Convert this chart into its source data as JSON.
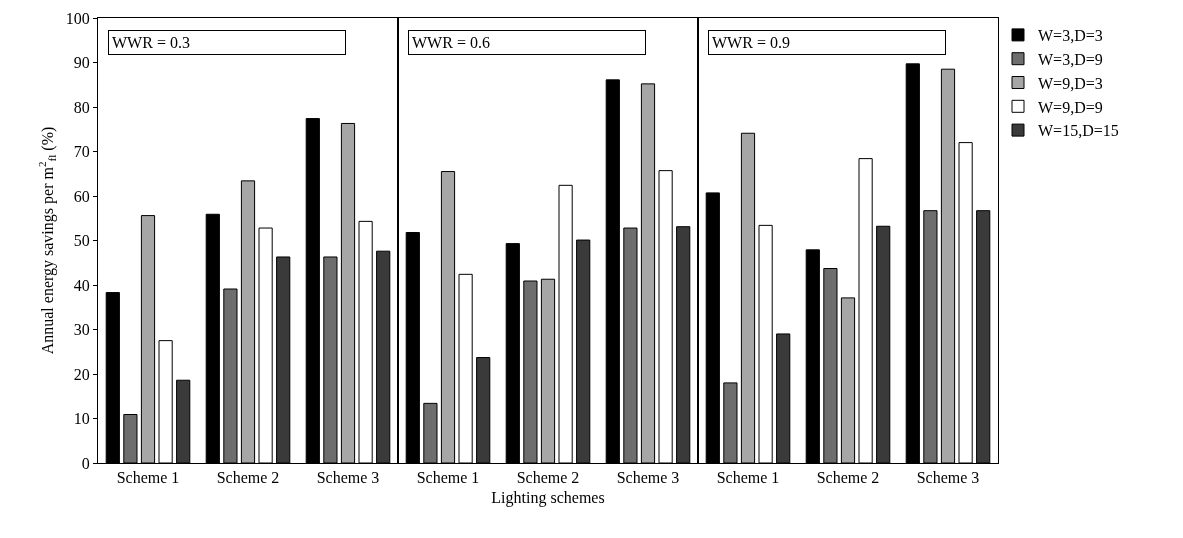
{
  "chart_data": {
    "type": "bar",
    "xlabel": "Lighting schemes",
    "ylabel": "Annual energy savings per m$^{2}$$_{fl}$ (%)",
    "categories": [
      "Scheme 1",
      "Scheme 2",
      "Scheme 3",
      "Scheme 1",
      "Scheme 2",
      "Scheme 3",
      "Scheme 1",
      "Scheme 2",
      "Scheme 3"
    ],
    "series": [
      {
        "name": "W=3,D=3",
        "color": "#000000",
        "values": [
          38.3,
          55.9,
          77.4,
          51.8,
          49.3,
          86.1,
          60.7,
          47.9,
          89.7
        ]
      },
      {
        "name": "W=3,D=9",
        "color": "#6e6e6e",
        "values": [
          10.9,
          39.1,
          46.3,
          13.4,
          40.9,
          52.8,
          18.0,
          43.7,
          56.7
        ]
      },
      {
        "name": "W=9,D=3",
        "color": "#a6a6a6",
        "values": [
          55.6,
          63.4,
          76.3,
          65.5,
          41.3,
          85.2,
          74.1,
          37.1,
          88.5
        ]
      },
      {
        "name": "W=9,D=9",
        "color": "#ffffff",
        "values": [
          27.5,
          52.8,
          54.3,
          42.4,
          62.4,
          65.7,
          53.4,
          68.4,
          72.0
        ]
      },
      {
        "name": "W=15,D=15",
        "color": "#3a3a3a",
        "values": [
          18.6,
          46.3,
          47.6,
          23.7,
          50.1,
          53.1,
          29.0,
          53.2,
          56.7
        ]
      }
    ],
    "annotations": [
      "WWR = 0.3",
      "WWR = 0.6",
      "WWR = 0.9"
    ],
    "ylim": [
      0,
      100
    ],
    "yticks": [
      0,
      10,
      20,
      30,
      40,
      50,
      60,
      70,
      80,
      90,
      100
    ],
    "grid": false,
    "legend": "top right"
  }
}
